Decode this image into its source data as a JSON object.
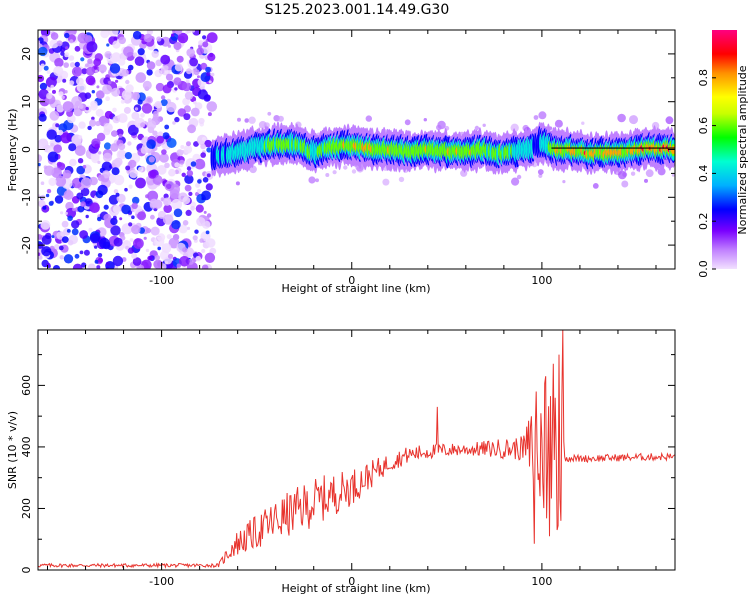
{
  "title": "S125.2023.001.14.49.G30",
  "chart_data": [
    {
      "type": "heatmap",
      "xlabel": "Height of straight line (km)",
      "ylabel": "Frequency (Hz)",
      "xlim": [
        -165,
        170
      ],
      "ylim": [
        -25,
        25
      ],
      "xticks": [
        -100,
        0,
        100
      ],
      "yticks": [
        -20,
        -10,
        0,
        10,
        20
      ],
      "colorbar": {
        "label": "Normalized spectral amplitude",
        "range": [
          0,
          1
        ],
        "ticks": [
          "0.0",
          "0.2",
          "0.4",
          "0.6",
          "0.8"
        ],
        "colors": [
          "#f2e0ff",
          "#c080ff",
          "#7a00ff",
          "#0000ff",
          "#00b0ff",
          "#00ffd0",
          "#00ff00",
          "#c8ff00",
          "#ffff00",
          "#ff9000",
          "#ff0000",
          "#ff0080"
        ]
      },
      "noise_region_x": [
        -165,
        -73
      ],
      "signal_track": {
        "x": [
          -73,
          -60,
          -50,
          -40,
          -30,
          -20,
          -10,
          0,
          10,
          20,
          30,
          40,
          50,
          60,
          70,
          80,
          90,
          95,
          100,
          105,
          110,
          120,
          130,
          140,
          150,
          160,
          170
        ],
        "freq": [
          -1.5,
          -0.5,
          0.5,
          1.0,
          1.2,
          -0.5,
          0.5,
          0.8,
          0.2,
          0.0,
          -0.5,
          0.0,
          -0.3,
          -0.4,
          0.0,
          -1.0,
          0.0,
          0.5,
          1.5,
          0.3,
          0.0,
          -0.5,
          -0.8,
          -0.5,
          0.0,
          0.2,
          0.2
        ],
        "amplitude": [
          0.4,
          0.55,
          0.6,
          0.7,
          0.65,
          0.6,
          0.75,
          0.8,
          0.85,
          0.8,
          0.75,
          0.8,
          0.78,
          0.8,
          0.7,
          0.65,
          0.55,
          0.5,
          0.45,
          0.7,
          0.85,
          0.9,
          0.95,
          0.9,
          0.92,
          0.95,
          0.95
        ]
      }
    },
    {
      "type": "line",
      "xlabel": "Height of straight line (km)",
      "ylabel": "SNR (10 * v/v)",
      "xlim": [
        -165,
        170
      ],
      "ylim": [
        0,
        780
      ],
      "xticks": [
        -100,
        0,
        100
      ],
      "yticks": [
        0,
        200,
        400,
        600
      ],
      "color": "#e8342e",
      "trend": {
        "x": [
          -165,
          -70,
          -62,
          -40,
          -20,
          0,
          10,
          20,
          30,
          40,
          50,
          60,
          80,
          90,
          95,
          100,
          105,
          110,
          112,
          120,
          140,
          160,
          170
        ],
        "y": [
          15,
          15,
          80,
          160,
          220,
          270,
          310,
          350,
          375,
          385,
          390,
          392,
          395,
          395,
          395,
          400,
          390,
          395,
          365,
          362,
          365,
          368,
          368
        ]
      },
      "noise_amp": {
        "x": [
          -165,
          -70,
          -62,
          -40,
          -20,
          0,
          20,
          40,
          60,
          90,
          95,
          100,
          105,
          110,
          112,
          170
        ],
        "y": [
          6,
          6,
          40,
          70,
          80,
          60,
          30,
          25,
          20,
          40,
          150,
          250,
          300,
          320,
          12,
          12
        ]
      },
      "spikes": [
        {
          "x": 45,
          "y": 530
        },
        {
          "x": 96,
          "y": 85
        },
        {
          "x": 97,
          "y": 580
        },
        {
          "x": 99,
          "y": 240
        },
        {
          "x": 102,
          "y": 630
        },
        {
          "x": 104,
          "y": 110
        },
        {
          "x": 106,
          "y": 670
        },
        {
          "x": 108,
          "y": 130
        },
        {
          "x": 109,
          "y": 700
        },
        {
          "x": 110,
          "y": 160
        },
        {
          "x": 111,
          "y": 780
        },
        {
          "x": 107,
          "y": 560
        }
      ]
    }
  ]
}
